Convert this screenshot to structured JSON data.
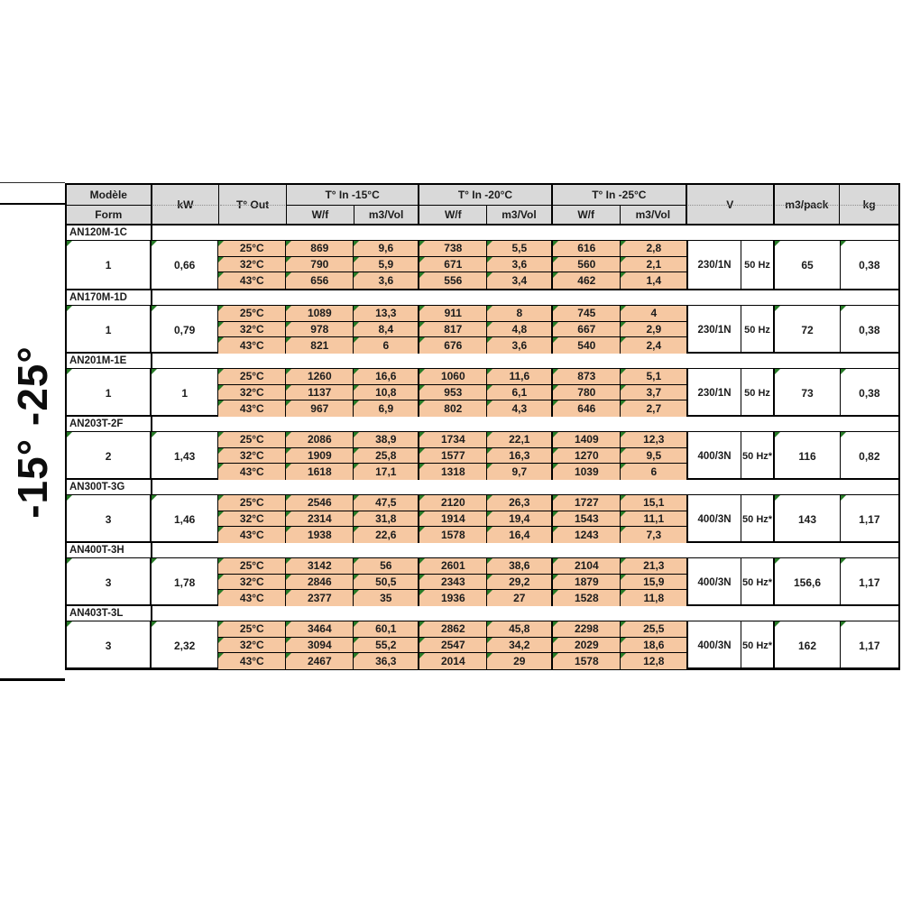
{
  "page": {
    "vertical_label": "-15° -25°"
  },
  "colors": {
    "header_bg": "#d9d9d9",
    "data_cell_fill": "#f6c8a2",
    "indicator_triangle_green": "#277b27",
    "border": "#000000"
  },
  "table": {
    "header": {
      "modele": "Modèle",
      "form": "Form",
      "kw": "kW",
      "t_out": "T° Out",
      "t_in_groups": [
        "T° In -15°C",
        "T° In -20°C",
        "T° In -25°C"
      ],
      "wf": "W/f",
      "m3vol": "m3/Vol",
      "v": "V",
      "m3pack": "m3/pack",
      "kg": "kg"
    },
    "sections": [
      {
        "model": "AN120M-1C",
        "form": "1",
        "kw": "0,66",
        "rows": [
          [
            "25°C",
            "869",
            "9,6",
            "738",
            "5,5",
            "616",
            "2,8"
          ],
          [
            "32°C",
            "790",
            "5,9",
            "671",
            "3,6",
            "560",
            "2,1"
          ],
          [
            "43°C",
            "656",
            "3,6",
            "556",
            "3,4",
            "462",
            "1,4"
          ]
        ],
        "v1": "230/1N",
        "v2": "50 Hz",
        "pack": "65",
        "kg": "0,38"
      },
      {
        "model": "AN170M-1D",
        "form": "1",
        "kw": "0,79",
        "rows": [
          [
            "25°C",
            "1089",
            "13,3",
            "911",
            "8",
            "745",
            "4"
          ],
          [
            "32°C",
            "978",
            "8,4",
            "817",
            "4,8",
            "667",
            "2,9"
          ],
          [
            "43°C",
            "821",
            "6",
            "676",
            "3,6",
            "540",
            "2,4"
          ]
        ],
        "v1": "230/1N",
        "v2": "50 Hz",
        "pack": "72",
        "kg": "0,38"
      },
      {
        "model": "AN201M-1E",
        "form": "1",
        "kw": "1",
        "rows": [
          [
            "25°C",
            "1260",
            "16,6",
            "1060",
            "11,6",
            "873",
            "5,1"
          ],
          [
            "32°C",
            "1137",
            "10,8",
            "953",
            "6,1",
            "780",
            "3,7"
          ],
          [
            "43°C",
            "967",
            "6,9",
            "802",
            "4,3",
            "646",
            "2,7"
          ]
        ],
        "v1": "230/1N",
        "v2": "50 Hz",
        "pack": "73",
        "kg": "0,38"
      },
      {
        "model": "AN203T-2F",
        "form": "2",
        "kw": "1,43",
        "rows": [
          [
            "25°C",
            "2086",
            "38,9",
            "1734",
            "22,1",
            "1409",
            "12,3"
          ],
          [
            "32°C",
            "1909",
            "25,8",
            "1577",
            "16,3",
            "1270",
            "9,5"
          ],
          [
            "43°C",
            "1618",
            "17,1",
            "1318",
            "9,7",
            "1039",
            "6"
          ]
        ],
        "v1": "400/3N",
        "v2": "50 Hz*",
        "pack": "116",
        "kg": "0,82"
      },
      {
        "model": "AN300T-3G",
        "form": "3",
        "kw": "1,46",
        "rows": [
          [
            "25°C",
            "2546",
            "47,5",
            "2120",
            "26,3",
            "1727",
            "15,1"
          ],
          [
            "32°C",
            "2314",
            "31,8",
            "1914",
            "19,4",
            "1543",
            "11,1"
          ],
          [
            "43°C",
            "1938",
            "22,6",
            "1578",
            "16,4",
            "1243",
            "7,3"
          ]
        ],
        "v1": "400/3N",
        "v2": "50 Hz*",
        "pack": "143",
        "kg": "1,17"
      },
      {
        "model": "AN400T-3H",
        "form": "3",
        "kw": "1,78",
        "rows": [
          [
            "25°C",
            "3142",
            "56",
            "2601",
            "38,6",
            "2104",
            "21,3"
          ],
          [
            "32°C",
            "2846",
            "50,5",
            "2343",
            "29,2",
            "1879",
            "15,9"
          ],
          [
            "43°C",
            "2377",
            "35",
            "1936",
            "27",
            "1528",
            "11,8"
          ]
        ],
        "v1": "400/3N",
        "v2": "50 Hz*",
        "pack": "156,6",
        "kg": "1,17"
      },
      {
        "model": "AN403T-3L",
        "form": "3",
        "kw": "2,32",
        "rows": [
          [
            "25°C",
            "3464",
            "60,1",
            "2862",
            "45,8",
            "2298",
            "25,5"
          ],
          [
            "32°C",
            "3094",
            "55,2",
            "2547",
            "34,2",
            "2029",
            "18,6"
          ],
          [
            "43°C",
            "2467",
            "36,3",
            "2014",
            "29",
            "1578",
            "12,8"
          ]
        ],
        "v1": "400/3N",
        "v2": "50 Hz*",
        "pack": "162",
        "kg": "1,17"
      }
    ]
  }
}
